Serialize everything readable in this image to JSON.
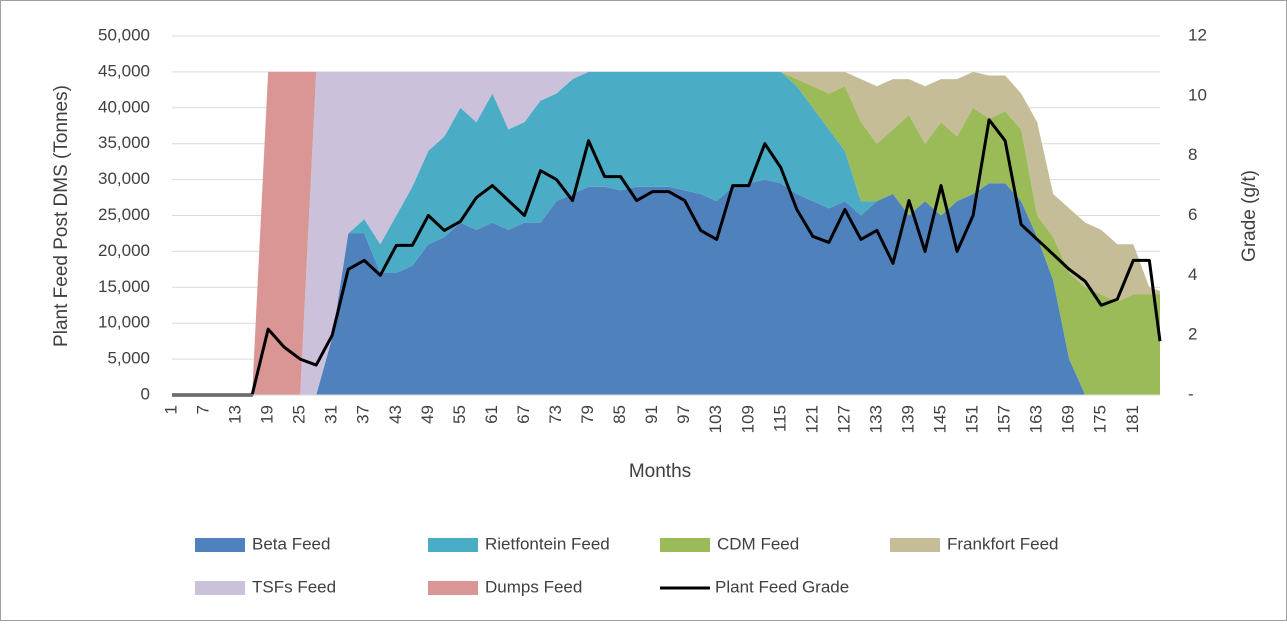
{
  "chart_data": {
    "type": "area",
    "x_label": "Months",
    "y_label": "Plant Feed Post DMS (Tonnes)",
    "y2_label": "Grade (g/t)",
    "x": [
      1,
      4,
      7,
      10,
      13,
      16,
      19,
      22,
      25,
      28,
      31,
      34,
      37,
      40,
      43,
      46,
      49,
      52,
      55,
      58,
      61,
      64,
      67,
      70,
      73,
      76,
      79,
      82,
      85,
      88,
      91,
      94,
      97,
      100,
      103,
      106,
      109,
      112,
      115,
      118,
      121,
      124,
      127,
      130,
      133,
      136,
      139,
      142,
      145,
      148,
      151,
      154,
      157,
      160,
      163,
      166,
      169,
      172,
      175,
      178,
      181,
      184,
      186
    ],
    "xlim": [
      1,
      186
    ],
    "xticks": [
      1,
      7,
      13,
      19,
      25,
      31,
      37,
      43,
      49,
      55,
      61,
      67,
      73,
      79,
      85,
      91,
      97,
      103,
      109,
      115,
      121,
      127,
      133,
      139,
      145,
      151,
      157,
      163,
      169,
      175,
      181
    ],
    "ylim": [
      0,
      50000
    ],
    "yticks": [
      0,
      {
        "value": 5000,
        "label": "5,000"
      },
      {
        "value": 10000,
        "label": "10,000"
      },
      {
        "value": 15000,
        "label": "15,000"
      },
      {
        "value": 20000,
        "label": "20,000"
      },
      {
        "value": 25000,
        "label": "25,000"
      },
      {
        "value": 30000,
        "label": "30,000"
      },
      {
        "value": 35000,
        "label": "35,000"
      },
      {
        "value": 40000,
        "label": "40,000"
      },
      {
        "value": 45000,
        "label": "45,000"
      },
      {
        "value": 50000,
        "label": "50,000"
      }
    ],
    "y2lim": [
      0,
      12
    ],
    "y2ticks": [
      {
        "value": 0,
        "label": "-"
      },
      2,
      4,
      6,
      8,
      10,
      12
    ],
    "grid": true,
    "series": [
      {
        "name": "Beta Feed",
        "color": "#4f81bd",
        "values": [
          0,
          0,
          0,
          0,
          0,
          0,
          0,
          0,
          0,
          0,
          8000,
          22500,
          22500,
          17000,
          17000,
          18000,
          21000,
          22000,
          24000,
          23000,
          24000,
          23000,
          24000,
          24000,
          27000,
          28000,
          29000,
          29000,
          28500,
          29000,
          29000,
          29000,
          28500,
          28000,
          27000,
          29000,
          29500,
          30000,
          29500,
          28000,
          27000,
          26000,
          27000,
          25000,
          27000,
          28000,
          25000,
          27000,
          25000,
          27000,
          28000,
          29500,
          29500,
          27000,
          22000,
          16000,
          5000,
          0,
          0,
          0,
          0,
          0,
          0
        ]
      },
      {
        "name": "Rietfontein Feed",
        "color": "#4bacc6",
        "values": [
          0,
          0,
          0,
          0,
          0,
          0,
          0,
          0,
          0,
          0,
          0,
          0,
          2000,
          4000,
          8000,
          11000,
          13000,
          14000,
          16000,
          15000,
          18000,
          14000,
          14000,
          17000,
          15000,
          16000,
          16000,
          16000,
          16500,
          16000,
          16000,
          16000,
          16500,
          17000,
          18000,
          16000,
          15500,
          15000,
          15500,
          15000,
          13000,
          11000,
          7000,
          2000,
          0,
          0,
          0,
          0,
          0,
          0,
          0,
          0,
          0,
          0,
          0,
          0,
          0,
          0,
          0,
          0,
          0,
          0,
          0
        ]
      },
      {
        "name": "CDM Feed",
        "color": "#9bbb59",
        "values": [
          0,
          0,
          0,
          0,
          0,
          0,
          0,
          0,
          0,
          0,
          0,
          0,
          0,
          0,
          0,
          0,
          0,
          0,
          0,
          0,
          0,
          0,
          0,
          0,
          0,
          0,
          0,
          0,
          0,
          0,
          0,
          0,
          0,
          0,
          0,
          0,
          0,
          0,
          0,
          1000,
          3000,
          5000,
          9000,
          11000,
          8000,
          9000,
          14000,
          8000,
          13000,
          9000,
          12000,
          9000,
          10000,
          10000,
          3000,
          6000,
          12000,
          15000,
          14000,
          13000,
          14000,
          14000,
          14000
        ]
      },
      {
        "name": "Frankfort Feed",
        "color": "#c4bd97",
        "values": [
          0,
          0,
          0,
          0,
          0,
          0,
          0,
          0,
          0,
          0,
          0,
          0,
          0,
          0,
          0,
          0,
          0,
          0,
          0,
          0,
          0,
          0,
          0,
          0,
          0,
          0,
          0,
          0,
          0,
          0,
          0,
          0,
          0,
          0,
          0,
          0,
          0,
          0,
          0,
          1000,
          2000,
          3000,
          2000,
          6000,
          8000,
          7000,
          5000,
          8000,
          6000,
          8000,
          5000,
          6000,
          5000,
          5000,
          13000,
          6000,
          9000,
          9000,
          9000,
          8000,
          7000,
          1000,
          500
        ]
      },
      {
        "name": "TSFs Feed",
        "color": "#ccc1da",
        "values": [
          0,
          0,
          0,
          0,
          0,
          0,
          0,
          0,
          0,
          45000,
          37000,
          22500,
          20500,
          24000,
          20000,
          16000,
          11000,
          9000,
          5000,
          7000,
          3000,
          8000,
          7000,
          4000,
          3000,
          1000,
          0,
          0,
          0,
          0,
          0,
          0,
          0,
          0,
          0,
          0,
          0,
          0,
          0,
          0,
          0,
          0,
          0,
          0,
          0,
          0,
          0,
          0,
          0,
          0,
          0,
          0,
          0,
          0,
          0,
          0,
          0,
          0,
          0,
          0,
          0,
          0,
          0
        ]
      },
      {
        "name": "Dumps Feed",
        "color": "#d99694",
        "values": [
          0,
          0,
          0,
          0,
          0,
          0,
          45000,
          45000,
          45000,
          0,
          0,
          0,
          0,
          0,
          0,
          0,
          0,
          0,
          0,
          0,
          0,
          0,
          0,
          0,
          0,
          0,
          0,
          0,
          0,
          0,
          0,
          0,
          0,
          0,
          0,
          0,
          0,
          0,
          0,
          0,
          0,
          0,
          0,
          0,
          0,
          0,
          0,
          0,
          0,
          0,
          0,
          0,
          0,
          0,
          0,
          0,
          0,
          0,
          0,
          0,
          0,
          0,
          0
        ]
      },
      {
        "name": "Plant Feed Grade",
        "color": "#000000",
        "axis": "y2",
        "values": [
          0,
          0,
          0,
          0,
          0,
          0,
          2.2,
          1.6,
          1.2,
          1.0,
          2.0,
          4.2,
          4.5,
          4.0,
          5.0,
          5.0,
          6.0,
          5.5,
          5.8,
          6.6,
          7.0,
          6.5,
          6.0,
          7.5,
          7.2,
          6.5,
          8.5,
          7.3,
          7.3,
          6.5,
          6.8,
          6.8,
          6.5,
          5.5,
          5.2,
          7.0,
          7.0,
          8.4,
          7.6,
          6.2,
          5.3,
          5.1,
          6.2,
          5.2,
          5.5,
          4.4,
          6.5,
          4.8,
          7.0,
          4.8,
          6.0,
          9.2,
          8.5,
          5.7,
          5.2,
          4.7,
          4.2,
          3.8,
          3.0,
          3.2,
          4.5,
          4.5,
          1.8
        ]
      }
    ]
  }
}
